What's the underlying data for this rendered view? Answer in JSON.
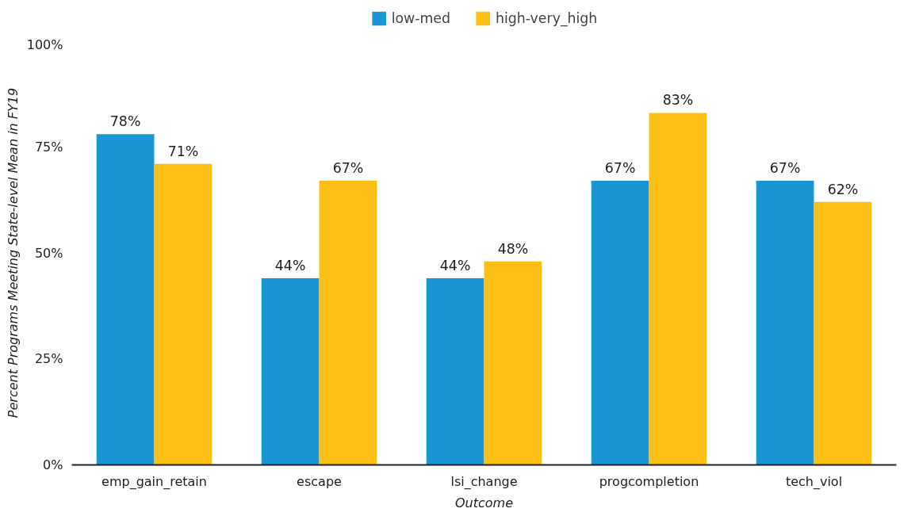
{
  "chart_data": {
    "type": "bar",
    "xlabel": "Outcome",
    "ylabel": "Percent Programs Meeting State-level Mean in FY19",
    "categories": [
      "emp_gain_retain",
      "escape",
      "lsi_change",
      "progcompletion",
      "tech_viol"
    ],
    "series": [
      {
        "name": "low-med",
        "color": "#1996d3",
        "values": [
          78,
          44,
          44,
          67,
          67
        ],
        "value_labels": [
          "78%",
          "44%",
          "44%",
          "67%",
          "67%"
        ]
      },
      {
        "name": "high-very_high",
        "color": "#fdbe15",
        "values": [
          71,
          67,
          48,
          83,
          62
        ],
        "value_labels": [
          "71%",
          "67%",
          "48%",
          "83%",
          "62%"
        ]
      }
    ],
    "ylim": [
      0,
      100
    ],
    "yticks": [
      {
        "value": 0,
        "label": "0%"
      },
      {
        "value": 25,
        "label": "25%"
      },
      {
        "value": 50,
        "label": "50%"
      },
      {
        "value": 75,
        "label": "75%"
      },
      {
        "value": 100,
        "label": "100%"
      }
    ],
    "grid": false,
    "legend": "top"
  }
}
